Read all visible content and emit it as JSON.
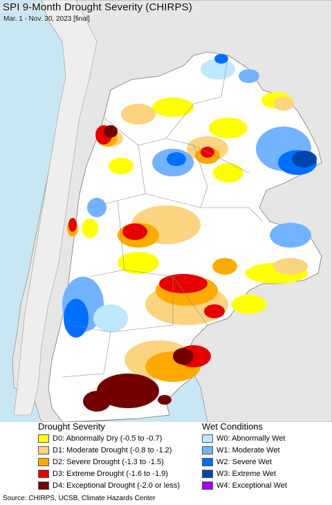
{
  "header": {
    "title": "SPI 9-Month Drought Severity (CHIRPS)",
    "subtitle": "Mar. 1 - Nov. 30, 2023 [final]"
  },
  "legend": {
    "drought_heading": "Drought Severity",
    "wet_heading": "Wet Conditions",
    "drought_items": [
      {
        "label": "D0: Abnormally Dry (-0.5 to -0.7)",
        "color": "#ffff00"
      },
      {
        "label": "D1: Moderate Drought (-0.8 to -1.2)",
        "color": "#fcd37f"
      },
      {
        "label": "D2: Severe Drought (-1.3 to -1.5)",
        "color": "#ffaa00"
      },
      {
        "label": "D3: Extreme Drought (-1.6 to -1.9)",
        "color": "#e60000"
      },
      {
        "label": "D4: Exceptional Drought (-2.0 or less)",
        "color": "#730000"
      }
    ],
    "wet_items": [
      {
        "label": "W0: Abnormally Wet",
        "color": "#bee8ff"
      },
      {
        "label": "W1: Moderate Wet",
        "color": "#73b2ff"
      },
      {
        "label": "W2: Severe Wet",
        "color": "#0070ff"
      },
      {
        "label": "W3: Extreme Wet",
        "color": "#0044aa"
      },
      {
        "label": "W4: Exceptional Wet",
        "color": "#a300ff"
      }
    ]
  },
  "footer": {
    "source": "Source: CHIRPS, UCSB, Climate Hazards Center"
  },
  "map": {
    "ocean_color": "#c9e6f3",
    "land_outside_color": "#e6e6e6",
    "land_color": "#ffffff",
    "border_color": "#888888"
  }
}
